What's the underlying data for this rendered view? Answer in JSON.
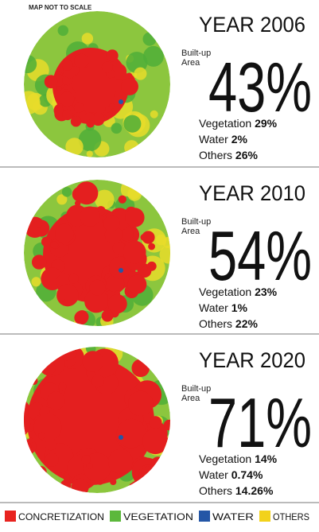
{
  "note": "MAP NOT TO SCALE",
  "panels": [
    {
      "year": "YEAR 2006",
      "built_up_label": [
        "Built-up",
        "Area"
      ],
      "built_up": "43%",
      "stats": [
        {
          "label": "Vegetation",
          "value": "29%"
        },
        {
          "label": "Water",
          "value": "2%"
        },
        {
          "label": "Others",
          "value": "26%"
        }
      ]
    },
    {
      "year": "YEAR 2010",
      "built_up_label": [
        "Built-up",
        "Area"
      ],
      "built_up": "54%",
      "stats": [
        {
          "label": "Vegetation",
          "value": "23%"
        },
        {
          "label": "Water",
          "value": "1%"
        },
        {
          "label": "Others",
          "value": "22%"
        }
      ]
    },
    {
      "year": "YEAR 2020",
      "built_up_label": [
        "Built-up",
        "Area"
      ],
      "built_up": "71%",
      "stats": [
        {
          "label": "Vegetation",
          "value": "14%"
        },
        {
          "label": "Water",
          "value": "0.74%"
        },
        {
          "label": "Others",
          "value": "14.26%"
        }
      ]
    }
  ],
  "legend": [
    {
      "label": "CONCRETIZATION",
      "color": "#e8231f"
    },
    {
      "label": "VEGETATION",
      "color": "#5cb83c"
    },
    {
      "label": "WATER",
      "color": "#2456a6"
    },
    {
      "label": "OTHERS",
      "color": "#f2d21b"
    }
  ]
}
